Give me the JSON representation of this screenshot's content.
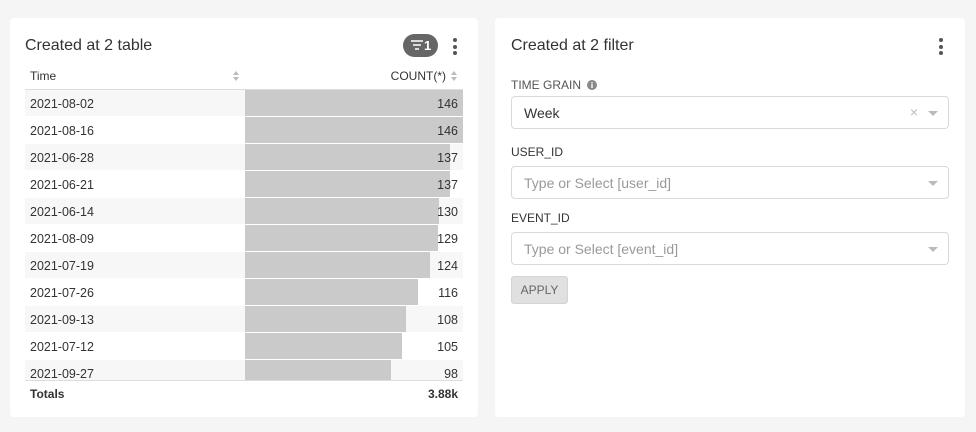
{
  "table_panel": {
    "title": "Created at 2 table",
    "filter_badge": "1",
    "columns": [
      "Time",
      "COUNT(*)"
    ],
    "rows": [
      [
        "2021-08-02",
        146
      ],
      [
        "2021-08-16",
        146
      ],
      [
        "2021-06-28",
        137
      ],
      [
        "2021-06-21",
        137
      ],
      [
        "2021-06-14",
        130
      ],
      [
        "2021-08-09",
        129
      ],
      [
        "2021-07-19",
        124
      ],
      [
        "2021-07-26",
        116
      ],
      [
        "2021-09-13",
        108
      ],
      [
        "2021-07-12",
        105
      ],
      [
        "2021-09-27",
        98
      ]
    ],
    "totals": {
      "label": "Totals",
      "value": "3.88k"
    }
  },
  "filter_panel": {
    "title": "Created at 2 filter",
    "filters": [
      {
        "label": "TIME GRAIN",
        "value": "Week"
      },
      {
        "label": "USER_ID",
        "placeholder": "Type or Select [user_id]"
      },
      {
        "label": "EVENT_ID",
        "placeholder": "Type or Select [event_id]"
      }
    ],
    "apply": "APPLY"
  }
}
